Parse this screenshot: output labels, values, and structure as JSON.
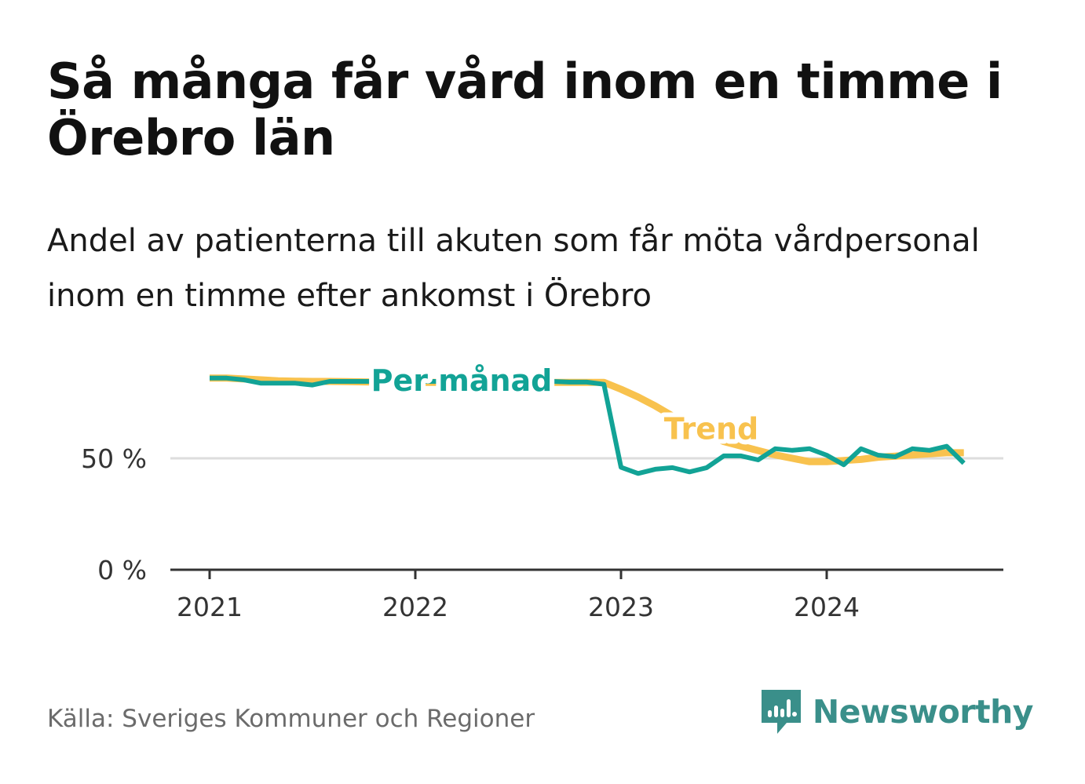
{
  "title": "Så många får vård inom en timme i Örebro län",
  "subtitle": "Andel av patienterna till akuten som får möta vårdpersonal inom en timme efter ankomst i Örebro",
  "source": "Källa: Sveriges Kommuner och Regioner",
  "brand": {
    "name": "Newsworthy",
    "icon": "newsworthy-logo-icon",
    "color": "#3a8f8a"
  },
  "chart_data": {
    "type": "line",
    "title": "Så många får vård inom en timme i Örebro län",
    "subtitle": "Andel av patienterna till akuten som får möta vårdpersonal inom en timme efter ankomst i Örebro",
    "xlabel": "",
    "ylabel": "",
    "x_ticks": [
      "2021",
      "2022",
      "2023",
      "2024"
    ],
    "y_ticks": [
      {
        "value": 0,
        "label": "0 %"
      },
      {
        "value": 50,
        "label": "50 %"
      }
    ],
    "ylim": [
      0,
      86
    ],
    "grid": true,
    "series": [
      {
        "name": "Trend",
        "color": "#f8c24e",
        "values": [
          [
            "2021-01",
            86
          ],
          [
            "2021-02",
            86
          ],
          [
            "2021-03",
            85.6
          ],
          [
            "2021-04",
            85.2
          ],
          [
            "2021-05",
            84.8
          ],
          [
            "2021-06",
            84.6
          ],
          [
            "2021-07",
            84.5
          ],
          [
            "2021-08",
            84.5
          ],
          [
            "2021-09",
            84.4
          ],
          [
            "2021-10",
            84.3
          ],
          [
            "2021-11",
            84.2
          ],
          [
            "2021-12",
            84.1
          ],
          [
            "2022-01",
            84.1
          ],
          [
            "2022-02",
            84.1
          ],
          [
            "2022-03",
            84.1
          ],
          [
            "2022-04",
            84.1
          ],
          [
            "2022-05",
            84.1
          ],
          [
            "2022-06",
            84.1
          ],
          [
            "2022-07",
            84.1
          ],
          [
            "2022-08",
            84.1
          ],
          [
            "2022-09",
            84.1
          ],
          [
            "2022-10",
            84.1
          ],
          [
            "2022-11",
            84.1
          ],
          [
            "2022-12",
            84.1
          ],
          [
            "2023-01",
            81
          ],
          [
            "2023-02",
            77.5
          ],
          [
            "2023-03",
            73.5
          ],
          [
            "2023-04",
            69
          ],
          [
            "2023-05",
            64.5
          ],
          [
            "2023-06",
            60.5
          ],
          [
            "2023-07",
            57.5
          ],
          [
            "2023-08",
            55.5
          ],
          [
            "2023-09",
            53.5
          ],
          [
            "2023-10",
            51.5
          ],
          [
            "2023-11",
            50
          ],
          [
            "2023-12",
            48.5
          ],
          [
            "2024-01",
            48.5
          ],
          [
            "2024-02",
            49
          ],
          [
            "2024-03",
            49.5
          ],
          [
            "2024-04",
            50.5
          ],
          [
            "2024-05",
            51
          ],
          [
            "2024-06",
            51.5
          ],
          [
            "2024-07",
            52
          ],
          [
            "2024-08",
            52.5
          ],
          [
            "2024-09",
            52.5
          ]
        ]
      },
      {
        "name": "Per månad",
        "color": "#12a396",
        "values": [
          [
            "2021-01",
            86
          ],
          [
            "2021-02",
            86
          ],
          [
            "2021-03",
            85.2
          ],
          [
            "2021-04",
            83.7
          ],
          [
            "2021-05",
            83.7
          ],
          [
            "2021-06",
            83.7
          ],
          [
            "2021-07",
            82.9
          ],
          [
            "2021-08",
            84.5
          ],
          [
            "2021-09",
            84.5
          ],
          [
            "2021-10",
            84.5
          ],
          [
            "2021-11",
            84.5
          ],
          [
            "2021-12",
            84.5
          ],
          [
            "2022-01",
            84.5
          ],
          [
            "2022-02",
            84.5
          ],
          [
            "2022-03",
            84.5
          ],
          [
            "2022-04",
            84.5
          ],
          [
            "2022-05",
            84.5
          ],
          [
            "2022-06",
            84.5
          ],
          [
            "2022-07",
            84.5
          ],
          [
            "2022-08",
            84.5
          ],
          [
            "2022-09",
            84.5
          ],
          [
            "2022-10",
            84.2
          ],
          [
            "2022-11",
            84.2
          ],
          [
            "2022-12",
            83.2
          ],
          [
            "2023-01",
            46
          ],
          [
            "2023-02",
            43.2
          ],
          [
            "2023-03",
            45.1
          ],
          [
            "2023-04",
            45.8
          ],
          [
            "2023-05",
            43.9
          ],
          [
            "2023-06",
            45.8
          ],
          [
            "2023-07",
            51.1
          ],
          [
            "2023-08",
            51.1
          ],
          [
            "2023-09",
            49.3
          ],
          [
            "2023-10",
            54.3
          ],
          [
            "2023-11",
            53.6
          ],
          [
            "2023-12",
            54.3
          ],
          [
            "2024-01",
            51.4
          ],
          [
            "2024-02",
            47.1
          ],
          [
            "2024-03",
            54.3
          ],
          [
            "2024-04",
            51.4
          ],
          [
            "2024-05",
            50.7
          ],
          [
            "2024-06",
            54.3
          ],
          [
            "2024-07",
            53.6
          ],
          [
            "2024-08",
            55.4
          ],
          [
            "2024-09",
            47.8
          ]
        ]
      }
    ],
    "annotations": [
      "Per månad",
      "Trend"
    ]
  }
}
